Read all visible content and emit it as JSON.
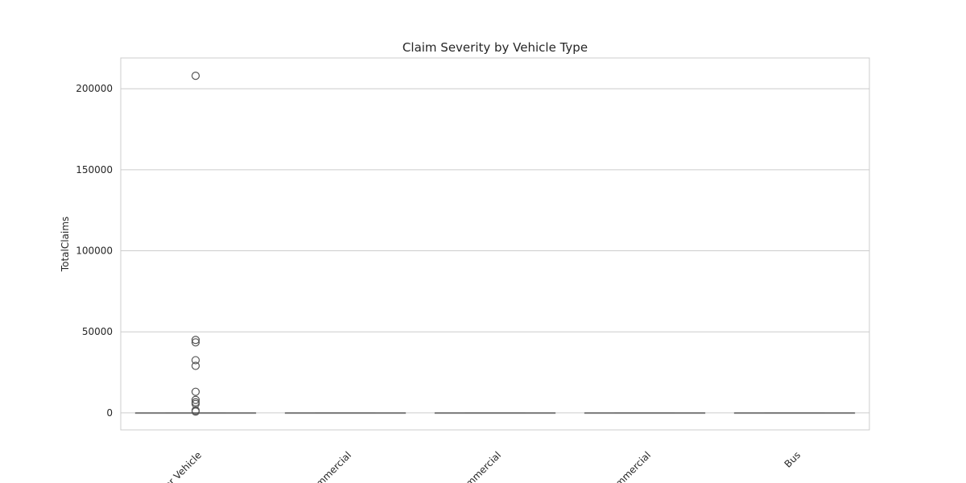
{
  "chart_data": {
    "type": "box",
    "title": "Claim Severity by Vehicle Type",
    "xlabel": "",
    "ylabel": "TotalClaims",
    "ylim": [
      -10500,
      219000
    ],
    "yticks": [
      0,
      50000,
      100000,
      150000,
      200000
    ],
    "ytick_labels": [
      "0",
      "50000",
      "100000",
      "150000",
      "200000"
    ],
    "grid": "y",
    "categories": [
      "Passenger Vehicle",
      "Medium Commercial",
      "Heavy Commercial",
      "Light Commercial",
      "Bus"
    ],
    "xtick_labels_visible": [
      "nger Vehicle",
      "Commercial",
      "Commercial",
      "Commercial",
      "Bus"
    ],
    "boxes": [
      {
        "q1": 0,
        "median": 0,
        "q3": 0,
        "whisker_low": 0,
        "whisker_high": 0,
        "outliers": [
          208000,
          45000,
          43500,
          32500,
          29000,
          13000,
          8000,
          6500,
          5500,
          1500,
          800
        ]
      },
      {
        "q1": 0,
        "median": 0,
        "q3": 0,
        "whisker_low": 0,
        "whisker_high": 0,
        "outliers": []
      },
      {
        "q1": 0,
        "median": 0,
        "q3": 0,
        "whisker_low": 0,
        "whisker_high": 0,
        "outliers": []
      },
      {
        "q1": 0,
        "median": 0,
        "q3": 0,
        "whisker_low": 0,
        "whisker_high": 0,
        "outliers": []
      },
      {
        "q1": 0,
        "median": 0,
        "q3": 0,
        "whisker_low": 0,
        "whisker_high": 0,
        "outliers": []
      }
    ],
    "colors": {
      "grid": "#cccccc",
      "frame": "#cccccc",
      "box": "#7f7f7f",
      "text": "#262626"
    }
  }
}
